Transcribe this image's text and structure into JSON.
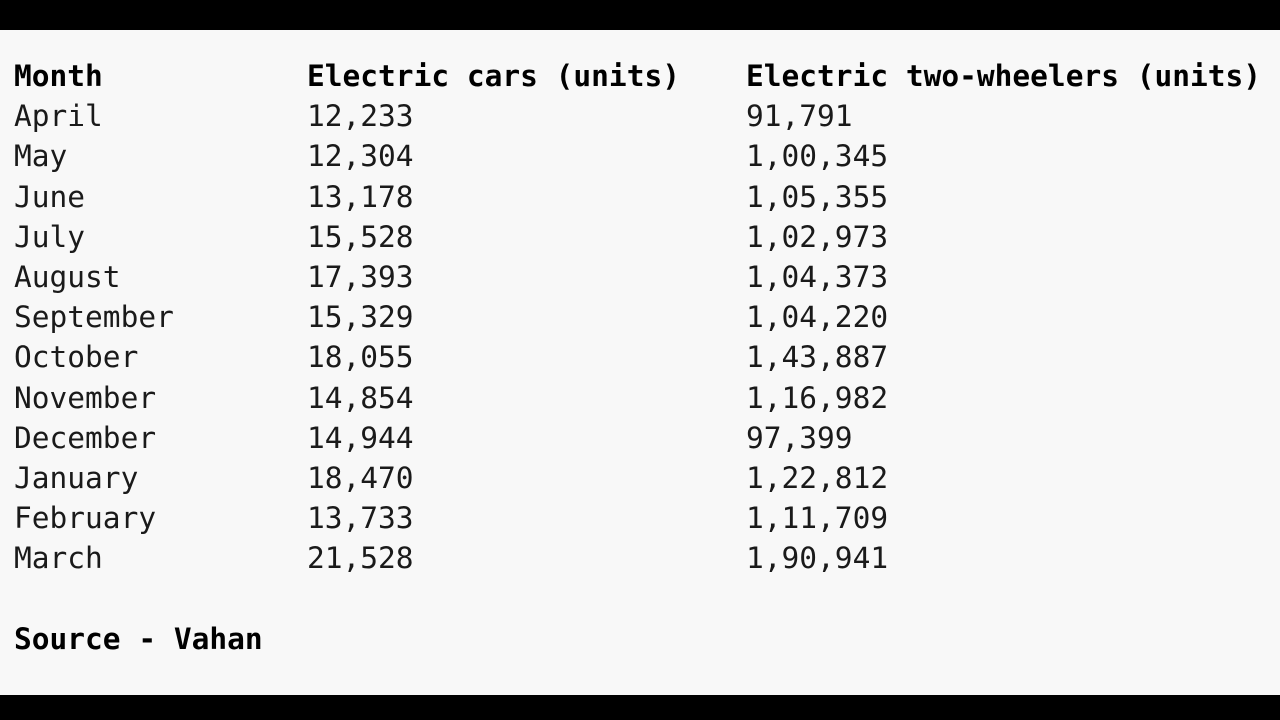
{
  "table": {
    "header": [
      "Month",
      "Electric cars (units)",
      "Electric two-wheelers (units)"
    ],
    "rows": [
      [
        "April",
        "12,233",
        "91,791"
      ],
      [
        "May",
        "12,304",
        "1,00,345"
      ],
      [
        "June",
        "13,178",
        "1,05,355"
      ],
      [
        "July",
        "15,528",
        "1,02,973"
      ],
      [
        "August",
        "17,393",
        "1,04,373"
      ],
      [
        "September",
        "15,329",
        "1,04,220"
      ],
      [
        "October",
        "18,055",
        "1,43,887"
      ],
      [
        "November",
        "14,854",
        "1,16,982"
      ],
      [
        "December",
        "14,944",
        "97,399"
      ],
      [
        "January",
        "18,470",
        "1,22,812"
      ],
      [
        "February",
        "13,733",
        "1,11,709"
      ],
      [
        "March",
        "21,528",
        "1,90,941"
      ]
    ]
  },
  "source": "Source - Vahan"
}
